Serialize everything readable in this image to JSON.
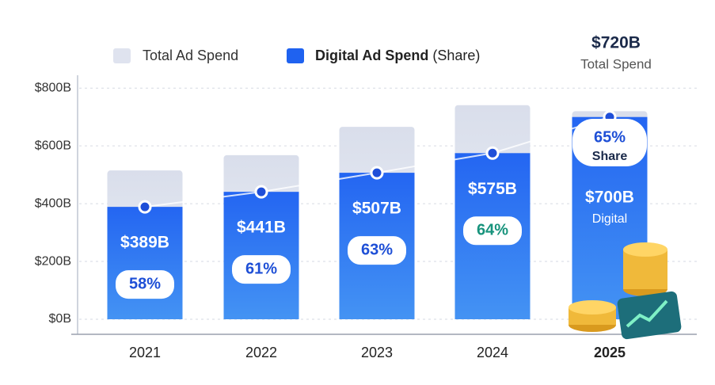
{
  "chart_data": {
    "type": "bar",
    "categories": [
      "2021",
      "2022",
      "2023",
      "2024",
      "2025"
    ],
    "series": [
      {
        "name": "Total Ad Spend",
        "color": "#dfe3ef",
        "values": [
          515,
          568,
          666,
          741,
          720
        ],
        "value_labels": [
          null,
          null,
          null,
          null,
          "$720B"
        ]
      },
      {
        "name": "Digital Ad Spend",
        "color": "#1f62f0",
        "values": [
          389,
          441,
          507,
          575,
          700
        ],
        "value_labels": [
          "$389B",
          "$441B",
          "$507B",
          "$575B",
          "$700B"
        ]
      }
    ],
    "legend_suffix": "(Share)",
    "share": {
      "name": "Share",
      "values": [
        58,
        61,
        63,
        64,
        65
      ],
      "value_labels": [
        "58%",
        "61%",
        "63%",
        "64%",
        "65%"
      ]
    },
    "annotations": {
      "total": "Total Spend",
      "digital": "Digital"
    },
    "ylim": [
      0,
      850
    ],
    "yticks": [
      {
        "value": 0,
        "label": "$0B"
      },
      {
        "value": 200,
        "label": "$200B"
      },
      {
        "value": 400,
        "label": "$400B"
      },
      {
        "value": 600,
        "label": "$600B"
      },
      {
        "value": 800,
        "label": "$800B"
      }
    ],
    "grid": true
  }
}
